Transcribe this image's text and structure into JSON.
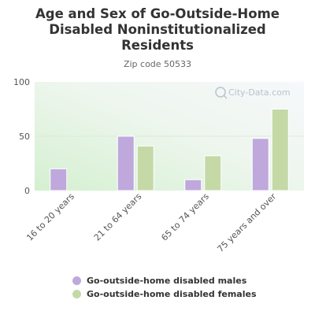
{
  "title_lines": [
    "Age and Sex of Go-Outside-Home",
    "Disabled Noninstitutionalized",
    "Residents"
  ],
  "subtitle": "Zip code 50533",
  "watermark": "City-Data.com",
  "colors": {
    "males": "#bfa8dc",
    "females": "#c5d9a6",
    "grid": "#dde8dd",
    "axis_text": "#555555"
  },
  "chart_data": {
    "type": "bar",
    "title": "Age and Sex of Go-Outside-Home Disabled Noninstitutionalized Residents",
    "subtitle": "Zip code 50533",
    "categories": [
      "16 to 20 years",
      "21 to 64 years",
      "65 to 74 years",
      "75 years and over"
    ],
    "series": [
      {
        "name": "Go-outside-home disabled males",
        "values": [
          20,
          50,
          10,
          48
        ]
      },
      {
        "name": "Go-outside-home disabled females",
        "values": [
          null,
          41,
          32,
          75
        ]
      }
    ],
    "yticks": [
      0,
      50,
      100
    ],
    "ylim": [
      0,
      100
    ],
    "xlabel": "",
    "ylabel": "",
    "grid": true,
    "legend": "bottom"
  }
}
